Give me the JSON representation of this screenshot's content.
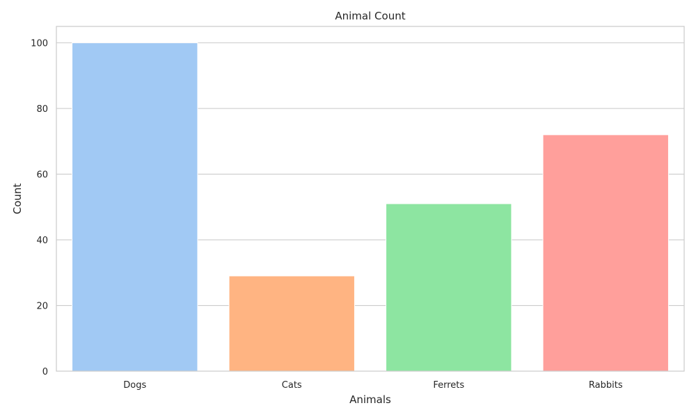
{
  "chart_data": {
    "type": "bar",
    "title": "Animal Count",
    "xlabel": "Animals",
    "ylabel": "Count",
    "categories": [
      "Dogs",
      "Cats",
      "Ferrets",
      "Rabbits"
    ],
    "values": [
      100,
      29,
      51,
      72
    ],
    "colors": [
      "#a1c9f4",
      "#ffb482",
      "#8de5a1",
      "#ff9f9b"
    ],
    "ylim": [
      0,
      105
    ],
    "yticks": [
      0,
      20,
      40,
      60,
      80,
      100
    ],
    "grid": true,
    "legend": "none"
  }
}
